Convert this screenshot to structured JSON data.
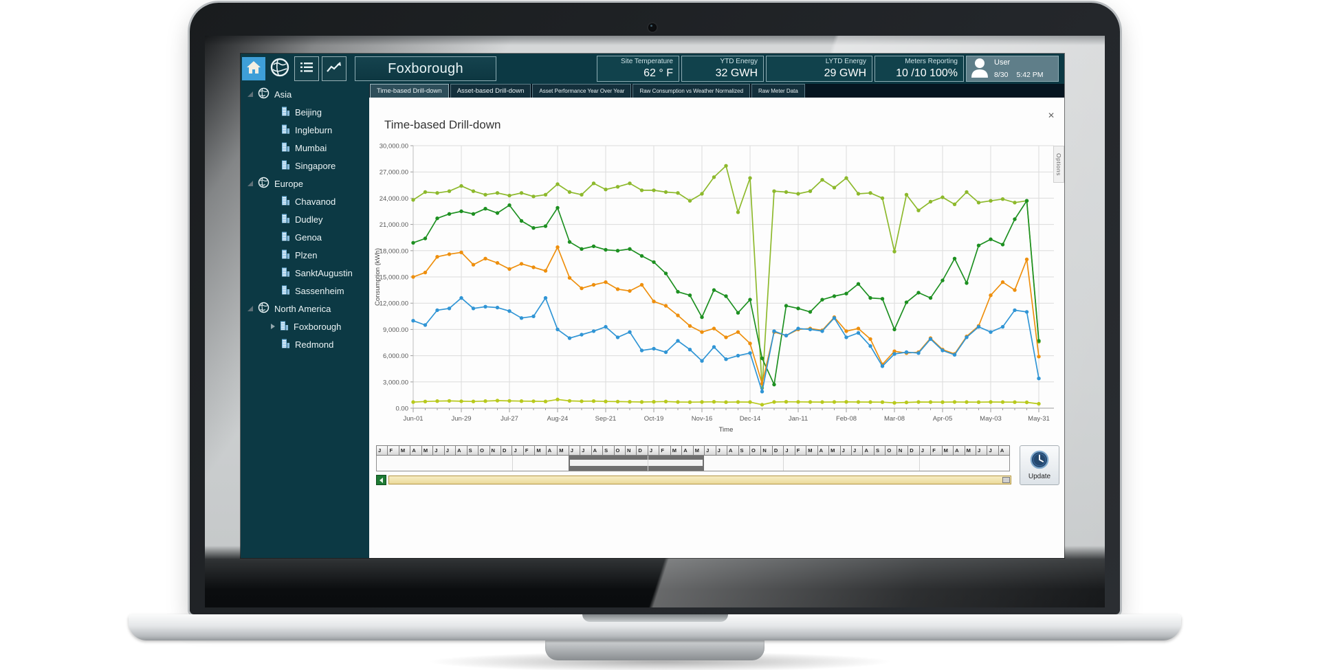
{
  "header": {
    "title": "Foxborough",
    "nav_icons": [
      "home",
      "globe",
      "list",
      "trend"
    ],
    "panels": [
      {
        "label": "Site Temperature",
        "value": "62 ° F"
      },
      {
        "label": "YTD Energy",
        "value": "32 GWH"
      },
      {
        "label": "LYTD Energy",
        "value": "29 GWH"
      },
      {
        "label": "Meters Reporting",
        "value": "10 /10 100%"
      }
    ],
    "user": {
      "label": "User",
      "date": "8/30",
      "time": "5:42 PM"
    }
  },
  "sidebar": {
    "regions": [
      {
        "label": "Asia",
        "sites": [
          "Beijing",
          "Ingleburn",
          "Mumbai",
          "Singapore"
        ],
        "expandable_sites": []
      },
      {
        "label": "Europe",
        "sites": [
          "Chavanod",
          "Dudley",
          "Genoa",
          "Plzen",
          "SanktAugustin",
          "Sassenheim"
        ],
        "expandable_sites": []
      },
      {
        "label": "North America",
        "sites": [
          "Foxborough",
          "Redmond"
        ],
        "expandable_sites": [
          "Foxborough"
        ]
      }
    ]
  },
  "tabs": {
    "items": [
      "Time-based Drill-down",
      "Asset-based Drill-down",
      "Asset Performance Year Over Year",
      "Raw Consumption vs Weather Normalized",
      "Raw Meter Data"
    ],
    "selected": 0
  },
  "panel": {
    "title": "Time-based Drill-down",
    "close_glyph": "✕",
    "options_label": "Options"
  },
  "chart_data": {
    "type": "line",
    "title": "Time-based Drill-down",
    "xlabel": "Time",
    "ylabel": "Consumption (kWh)",
    "ylim": [
      0,
      30000
    ],
    "y_tick_step": 3000,
    "grid": true,
    "legend": "none",
    "x_unit": "week",
    "n_points": 53,
    "x_major_every": 4,
    "x_tick_labels": [
      "Jun-01",
      "Jun-29",
      "Jul-27",
      "Aug-24",
      "Sep-21",
      "Oct-19",
      "Nov-16",
      "Dec-14",
      "Jan-11",
      "Feb-08",
      "Mar-08",
      "Apr-05",
      "May-03",
      "May-31"
    ],
    "series": [
      {
        "name": "green-light",
        "color": "#8db92c",
        "values": [
          23800,
          24700,
          24600,
          24800,
          25400,
          24800,
          24400,
          24600,
          24300,
          24600,
          24200,
          24400,
          25600,
          24700,
          24400,
          25700,
          25000,
          25300,
          25700,
          24900,
          24900,
          24700,
          24600,
          23700,
          24500,
          26400,
          27700,
          22400,
          26300,
          2300,
          24800,
          24700,
          24500,
          24800,
          26100,
          25200,
          26300,
          24500,
          24600,
          24000,
          17900,
          24400,
          22600,
          23600,
          24100,
          23300,
          24700,
          23500,
          23700,
          23900,
          23500,
          23700,
          7600
        ]
      },
      {
        "name": "green-dark",
        "color": "#1d9021",
        "values": [
          18900,
          19400,
          21700,
          22200,
          22500,
          22200,
          22800,
          22300,
          23200,
          21400,
          20600,
          20800,
          22900,
          19000,
          18200,
          18500,
          18100,
          18000,
          18200,
          17400,
          16700,
          15400,
          13300,
          12900,
          10400,
          13500,
          12800,
          10900,
          12400,
          5700,
          2700,
          11700,
          11400,
          11000,
          12400,
          12800,
          13100,
          14200,
          12600,
          12500,
          9000,
          12100,
          13200,
          12600,
          14600,
          17100,
          14300,
          18600,
          19300,
          18700,
          21600,
          23700,
          7700
        ]
      },
      {
        "name": "orange",
        "color": "#ee8f0d",
        "values": [
          15000,
          15500,
          17300,
          17600,
          17800,
          16400,
          17100,
          16600,
          15900,
          16500,
          16100,
          15700,
          18400,
          14900,
          13700,
          14100,
          14400,
          13600,
          13400,
          14100,
          12200,
          11700,
          10600,
          9400,
          8700,
          9100,
          8100,
          8700,
          7400,
          2800,
          8700,
          8300,
          9000,
          9100,
          8900,
          10400,
          8800,
          9100,
          7900,
          5000,
          6500,
          6300,
          6400,
          8000,
          6700,
          6200,
          8200,
          9400,
          12900,
          14400,
          13500,
          17000,
          5900
        ]
      },
      {
        "name": "blue",
        "color": "#3095d5",
        "values": [
          10000,
          9500,
          11200,
          11400,
          12600,
          11400,
          11600,
          11500,
          11100,
          10300,
          10500,
          12600,
          9000,
          8000,
          8400,
          8800,
          9300,
          8100,
          8700,
          6600,
          6800,
          6400,
          7700,
          6700,
          5400,
          7000,
          5600,
          6000,
          6300,
          1900,
          8800,
          8300,
          9100,
          9000,
          8800,
          10300,
          8100,
          8600,
          7100,
          4800,
          6200,
          6400,
          6300,
          7900,
          6600,
          6100,
          8100,
          9300,
          8700,
          9300,
          11200,
          11000,
          3400
        ]
      },
      {
        "name": "olive",
        "color": "#b8c91c",
        "values": [
          700,
          760,
          810,
          830,
          790,
          770,
          810,
          860,
          830,
          810,
          790,
          770,
          1000,
          830,
          790,
          810,
          770,
          750,
          730,
          710,
          730,
          760,
          710,
          690,
          710,
          730,
          690,
          710,
          700,
          400,
          710,
          730,
          720,
          710,
          700,
          710,
          720,
          710,
          700,
          690,
          610,
          660,
          710,
          700,
          690,
          710,
          700,
          690,
          710,
          700,
          690,
          670,
          500
        ]
      }
    ]
  },
  "scrubber": {
    "month_letters": [
      "J",
      "F",
      "M",
      "A",
      "M",
      "J",
      "J",
      "A",
      "S",
      "O",
      "N",
      "D",
      "J",
      "F",
      "M",
      "A",
      "M",
      "J",
      "J",
      "A",
      "S",
      "O",
      "N",
      "D",
      "J",
      "F",
      "M",
      "A",
      "M",
      "J",
      "J",
      "A",
      "S",
      "O",
      "N",
      "D",
      "J",
      "F",
      "M",
      "A",
      "M",
      "J",
      "J",
      "A",
      "S",
      "O",
      "N",
      "D",
      "J",
      "F",
      "M",
      "A",
      "M",
      "J",
      "J",
      "A"
    ],
    "year_separators_every": 12,
    "selection": {
      "start_index": 17,
      "span": 12
    },
    "update_label": "Update"
  }
}
